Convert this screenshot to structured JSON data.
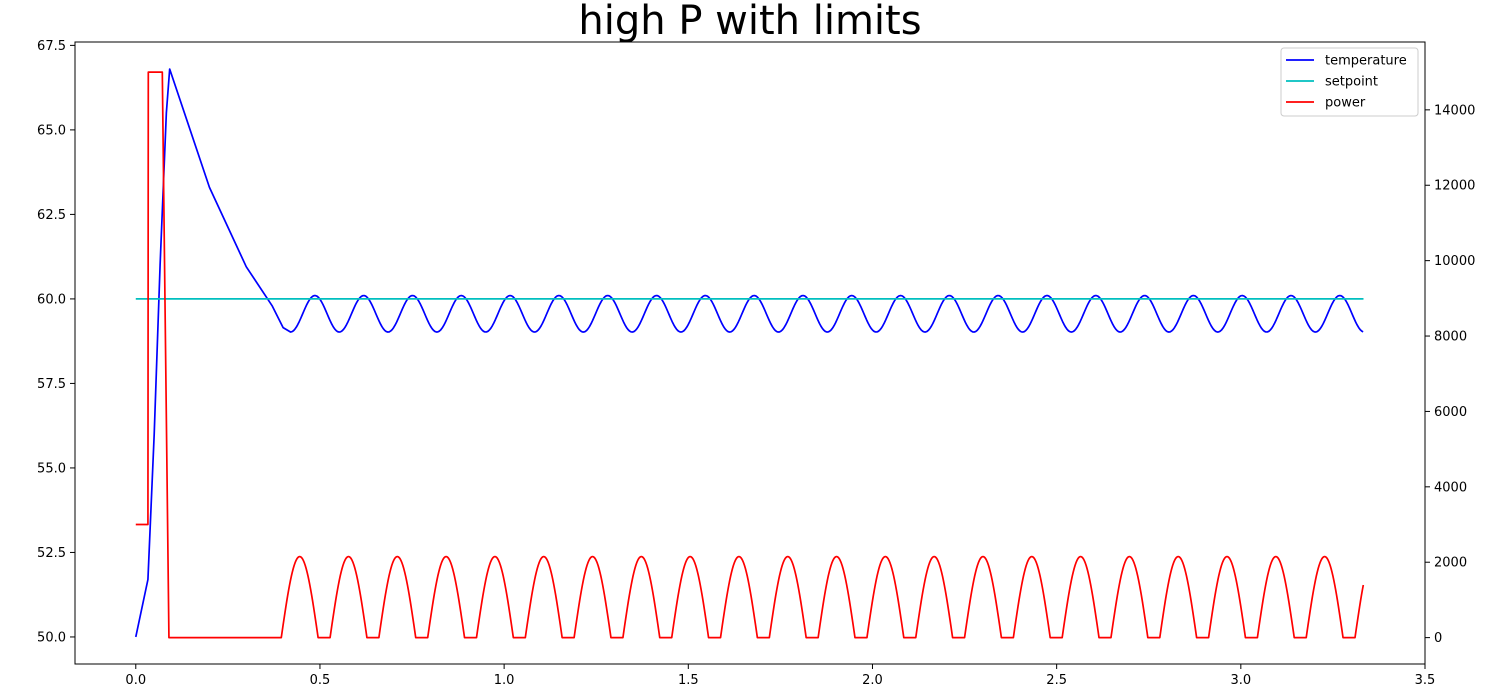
{
  "chart_data": {
    "type": "line",
    "title": "high P with limits",
    "xlabel": "",
    "ylabel": "",
    "y2label": "",
    "xlim": [
      -0.165,
      3.5
    ],
    "ylim": [
      49.2,
      67.6
    ],
    "y2lim": [
      -700,
      15800
    ],
    "x_ticks": [
      "0.0",
      "0.5",
      "1.0",
      "1.5",
      "2.0",
      "2.5",
      "3.0",
      "3.5"
    ],
    "y_ticks": [
      "50.0",
      "52.5",
      "55.0",
      "57.5",
      "60.0",
      "62.5",
      "65.0",
      "67.5"
    ],
    "y2_ticks": [
      "0",
      "2000",
      "4000",
      "6000",
      "8000",
      "10000",
      "12000",
      "14000"
    ],
    "legend_position": "top-right",
    "grid": false,
    "series": [
      {
        "name": "temperature",
        "axis": "left",
        "color": "#0000ff",
        "initial": [
          [
            0.0,
            50.0
          ],
          [
            0.033,
            51.7
          ],
          [
            0.05,
            56.0
          ],
          [
            0.066,
            61.0
          ],
          [
            0.083,
            65.5
          ],
          [
            0.092,
            66.8
          ],
          [
            0.2,
            63.3
          ],
          [
            0.3,
            60.95
          ],
          [
            0.37,
            59.8
          ],
          [
            0.4,
            59.15
          ],
          [
            0.42,
            59.02
          ]
        ],
        "oscillation": {
          "start": 0.42,
          "end": 3.333,
          "period": 0.1325,
          "min": 59.02,
          "max": 60.1,
          "phase_at_start": "min"
        }
      },
      {
        "name": "setpoint",
        "axis": "left",
        "color": "#00bfbf",
        "points": [
          [
            0.0,
            60.0
          ],
          [
            3.333,
            60.0
          ]
        ]
      },
      {
        "name": "power",
        "axis": "right",
        "color": "#ff0000",
        "initial": [
          [
            0.0,
            3000
          ],
          [
            0.033,
            3000
          ],
          [
            0.034,
            15000
          ],
          [
            0.072,
            15000
          ],
          [
            0.09,
            0
          ],
          [
            0.395,
            0
          ]
        ],
        "pulses": {
          "start": 0.395,
          "end": 3.333,
          "period": 0.1325,
          "peak": 2150,
          "rise": 0.05,
          "fall": 0.05,
          "zero_hold": 0.0325
        }
      }
    ]
  }
}
